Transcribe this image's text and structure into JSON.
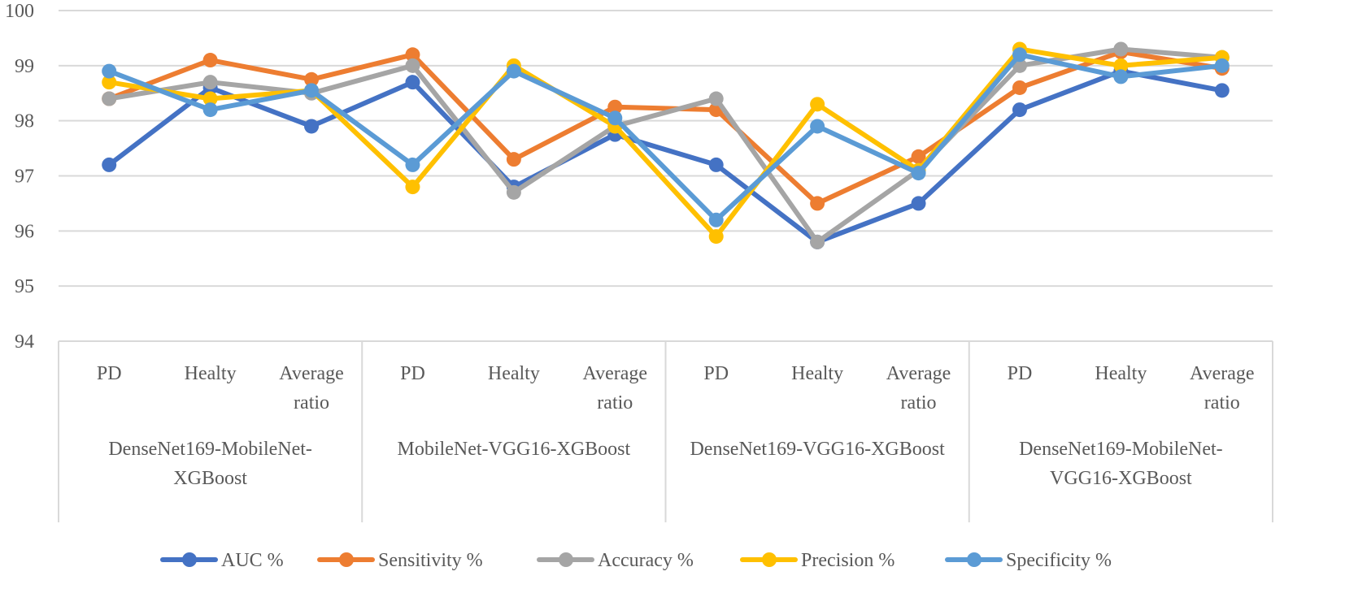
{
  "chart_data": {
    "type": "line",
    "title": "",
    "xlabel": "",
    "ylabel": "",
    "ylim": [
      94,
      100
    ],
    "yticks": [
      94,
      95,
      96,
      97,
      98,
      99,
      100
    ],
    "grid": true,
    "legend_position": "bottom",
    "groups": [
      {
        "label_lines": [
          "DenseNet169-MobileNet-",
          "XGBoost"
        ],
        "categories": [
          [
            "PD"
          ],
          [
            "Healty"
          ],
          [
            "Average",
            "ratio"
          ]
        ]
      },
      {
        "label_lines": [
          "MobileNet-VGG16-XGBoost"
        ],
        "categories": [
          [
            "PD"
          ],
          [
            "Healty"
          ],
          [
            "Average",
            "ratio"
          ]
        ]
      },
      {
        "label_lines": [
          "DenseNet169-VGG16-XGBoost"
        ],
        "categories": [
          [
            "PD"
          ],
          [
            "Healty"
          ],
          [
            "Average",
            "ratio"
          ]
        ]
      },
      {
        "label_lines": [
          "DenseNet169-MobileNet-",
          "VGG16-XGBoost"
        ],
        "categories": [
          [
            "PD"
          ],
          [
            "Healty"
          ],
          [
            "Average",
            "ratio"
          ]
        ]
      }
    ],
    "series": [
      {
        "name": "AUC %",
        "color": "#4472C4",
        "values": [
          97.2,
          98.6,
          97.9,
          98.7,
          96.8,
          97.75,
          97.2,
          95.8,
          96.5,
          98.2,
          98.9,
          98.55
        ]
      },
      {
        "name": "Sensitivity %",
        "color": "#ED7D31",
        "values": [
          98.4,
          99.1,
          98.75,
          99.2,
          97.3,
          98.25,
          98.2,
          96.5,
          97.35,
          98.6,
          99.25,
          98.95
        ]
      },
      {
        "name": "Accuracy %",
        "color": "#A5A5A5",
        "values": [
          98.4,
          98.7,
          98.5,
          99.0,
          96.7,
          97.9,
          98.4,
          95.8,
          97.1,
          99.0,
          99.3,
          99.15
        ]
      },
      {
        "name": "Precision %",
        "color": "#FFC000",
        "values": [
          98.7,
          98.4,
          98.55,
          96.8,
          99.0,
          97.9,
          95.9,
          98.3,
          97.1,
          99.3,
          99.0,
          99.15
        ]
      },
      {
        "name": "Specificity %",
        "color": "#5B9BD5",
        "values": [
          98.9,
          98.2,
          98.55,
          97.2,
          98.9,
          98.05,
          96.2,
          97.9,
          97.05,
          99.2,
          98.8,
          99.0
        ]
      }
    ]
  }
}
